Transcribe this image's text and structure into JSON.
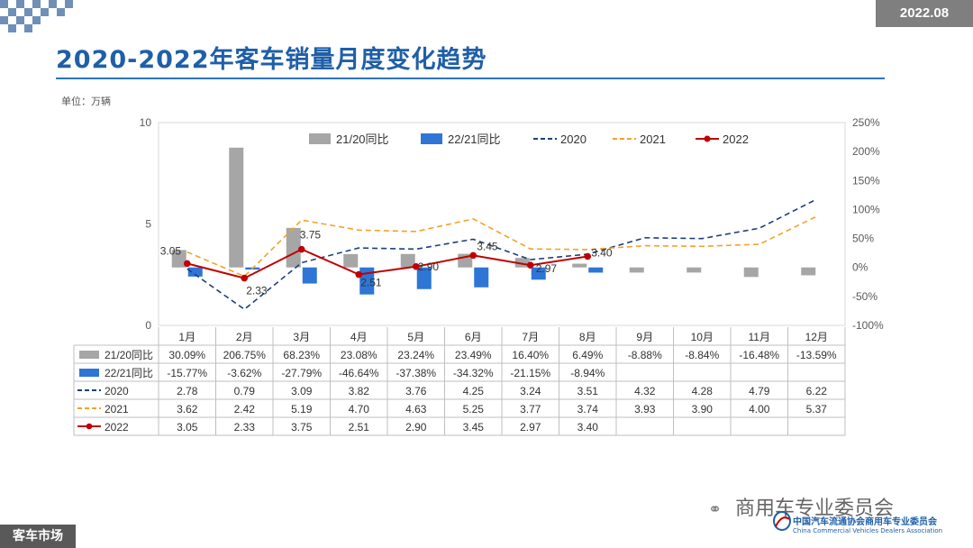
{
  "header": {
    "date": "2022.08",
    "title": "2020-2022年客车销量月度变化趋势",
    "unit": "单位：万辆"
  },
  "footer": {
    "section": "客车市场",
    "wechat_account": "商用车专业委员会",
    "association_cn": "中国汽车流通协会商用车专业委员会",
    "association_en": "China Commercial Vehicles Dealers Association"
  },
  "colors": {
    "title": "#1f5fa8",
    "bar_21_20": "#a6a6a6",
    "bar_22_21": "#2e75d6",
    "line_2020": "#1f3f7a",
    "line_2021": "#f4a128",
    "line_2022": "#c00000"
  },
  "chart_data": {
    "type": "combo-bar-line",
    "categories": [
      "1月",
      "2月",
      "3月",
      "4月",
      "5月",
      "6月",
      "7月",
      "8月",
      "9月",
      "10月",
      "11月",
      "12月"
    ],
    "left_axis": {
      "range": [
        0,
        10
      ],
      "ticks": [
        0,
        5,
        10
      ]
    },
    "right_axis": {
      "range": [
        -100,
        250
      ],
      "ticks": [
        "-100%",
        "-50%",
        "0%",
        "50%",
        "100%",
        "150%",
        "200%",
        "250%"
      ]
    },
    "legend_position": "top",
    "bar_series": [
      {
        "name": "21/20同比",
        "axis": "right",
        "values": [
          30.09,
          206.75,
          68.23,
          23.08,
          23.24,
          23.49,
          16.4,
          6.49,
          -8.88,
          -8.84,
          -16.48,
          -13.59
        ],
        "labels": [
          "30.09%",
          "206.75%",
          "68.23%",
          "23.08%",
          "23.24%",
          "23.49%",
          "16.40%",
          "6.49%",
          "-8.88%",
          "-8.84%",
          "-16.48%",
          "-13.59%"
        ]
      },
      {
        "name": "22/21同比",
        "axis": "right",
        "values": [
          -15.77,
          -3.62,
          -27.79,
          -46.64,
          -37.38,
          -34.32,
          -21.15,
          -8.94,
          null,
          null,
          null,
          null
        ],
        "labels": [
          "-15.77%",
          "-3.62%",
          "-27.79%",
          "-46.64%",
          "-37.38%",
          "-34.32%",
          "-21.15%",
          "-8.94%",
          "",
          "",
          "",
          ""
        ]
      }
    ],
    "line_series": [
      {
        "name": "2020",
        "axis": "left",
        "style": "dashed",
        "values": [
          2.78,
          0.79,
          3.09,
          3.82,
          3.76,
          4.25,
          3.24,
          3.51,
          4.32,
          4.28,
          4.79,
          6.22
        ],
        "labels": [
          "2.78",
          "0.79",
          "3.09",
          "3.82",
          "3.76",
          "4.25",
          "3.24",
          "3.51",
          "4.32",
          "4.28",
          "4.79",
          "6.22"
        ]
      },
      {
        "name": "2021",
        "axis": "left",
        "style": "dashed",
        "values": [
          3.62,
          2.42,
          5.19,
          4.7,
          4.63,
          5.25,
          3.77,
          3.74,
          3.93,
          3.9,
          4.0,
          5.37
        ],
        "labels": [
          "3.62",
          "2.42",
          "5.19",
          "4.70",
          "4.63",
          "5.25",
          "3.77",
          "3.74",
          "3.93",
          "3.90",
          "4.00",
          "5.37"
        ]
      },
      {
        "name": "2022",
        "axis": "left",
        "style": "solid-marker",
        "values": [
          3.05,
          2.33,
          3.75,
          2.51,
          2.9,
          3.45,
          2.97,
          3.4,
          null,
          null,
          null,
          null
        ],
        "labels": [
          "3.05",
          "2.33",
          "3.75",
          "2.51",
          "2.90",
          "3.45",
          "2.97",
          "3.40",
          "",
          "",
          "",
          ""
        ]
      }
    ]
  }
}
